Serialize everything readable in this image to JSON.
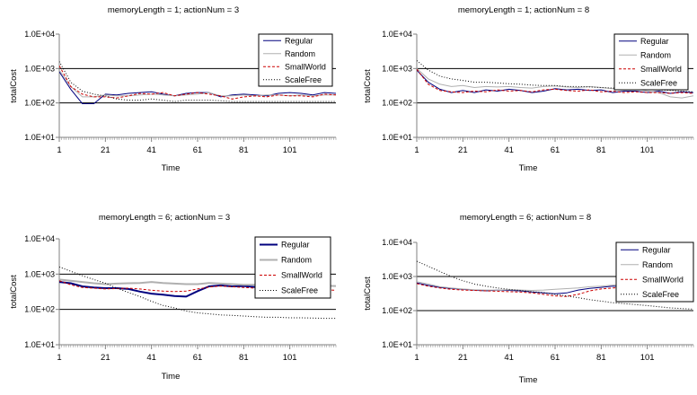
{
  "page": {
    "background": "#ffffff"
  },
  "chart_data": [
    {
      "type": "line",
      "title": "memoryLength = 1; actionNum = 3",
      "xlabel": "Time",
      "ylabel": "totalCost",
      "y_scale": "log",
      "ylim": [
        10,
        10000
      ],
      "yticks": [
        {
          "value": 10,
          "label": "1.0E+01"
        },
        {
          "value": 100,
          "label": "1.0E+02"
        },
        {
          "value": 1000,
          "label": "1.0E+03"
        },
        {
          "value": 10000,
          "label": "1.0E+04"
        }
      ],
      "xlim": [
        1,
        121
      ],
      "xticks": [
        1,
        21,
        41,
        61,
        81,
        101
      ],
      "gridlines_at": [
        100,
        1000
      ],
      "legend_position": "top-right",
      "series": [
        {
          "name": "Regular",
          "color": "#00007f",
          "dash": "",
          "width": 1,
          "x": [
            1,
            6,
            11,
            16,
            21,
            26,
            31,
            36,
            41,
            46,
            51,
            56,
            61,
            66,
            71,
            76,
            81,
            86,
            91,
            96,
            101,
            106,
            111,
            116,
            121
          ],
          "values": [
            800,
            250,
            95,
            95,
            180,
            170,
            190,
            200,
            210,
            180,
            160,
            190,
            200,
            200,
            150,
            170,
            180,
            170,
            160,
            190,
            200,
            190,
            170,
            200,
            190
          ]
        },
        {
          "name": "Random",
          "color": "#b0b0b0",
          "dash": "",
          "width": 1,
          "x": [
            1,
            6,
            11,
            16,
            21,
            26,
            31,
            36,
            41,
            46,
            51,
            56,
            61,
            66,
            71,
            76,
            81,
            86,
            91,
            96,
            101,
            106,
            111,
            116,
            121
          ],
          "values": [
            900,
            300,
            150,
            150,
            170,
            160,
            160,
            170,
            180,
            170,
            160,
            170,
            180,
            200,
            160,
            160,
            170,
            160,
            170,
            170,
            160,
            170,
            160,
            170,
            170
          ]
        },
        {
          "name": "SmallWorld",
          "color": "#cc0000",
          "dash": "3,2",
          "width": 1,
          "x": [
            1,
            6,
            11,
            16,
            21,
            26,
            31,
            36,
            41,
            46,
            51,
            56,
            61,
            66,
            71,
            76,
            81,
            86,
            91,
            96,
            101,
            106,
            111,
            116,
            121
          ],
          "values": [
            1200,
            300,
            180,
            150,
            150,
            140,
            160,
            190,
            180,
            200,
            160,
            180,
            200,
            180,
            160,
            130,
            150,
            160,
            150,
            170,
            160,
            160,
            150,
            180,
            170
          ]
        },
        {
          "name": "ScaleFree",
          "color": "#000000",
          "dash": "1,2",
          "width": 1,
          "x": [
            1,
            6,
            11,
            16,
            21,
            26,
            31,
            36,
            41,
            46,
            51,
            56,
            61,
            66,
            71,
            76,
            81,
            86,
            91,
            96,
            101,
            106,
            111,
            116,
            121
          ],
          "values": [
            1600,
            400,
            220,
            180,
            160,
            130,
            120,
            120,
            130,
            120,
            110,
            120,
            120,
            120,
            115,
            110,
            110,
            110,
            110,
            110,
            110,
            110,
            110,
            110,
            110
          ]
        }
      ]
    },
    {
      "type": "line",
      "title": "memoryLength = 1; actionNum = 8",
      "xlabel": "Time",
      "ylabel": "totalCost",
      "y_scale": "log",
      "ylim": [
        10,
        10000
      ],
      "yticks": [
        {
          "value": 10,
          "label": "1.0E+01"
        },
        {
          "value": 100,
          "label": "1.0E+02"
        },
        {
          "value": 1000,
          "label": "1.0E+03"
        },
        {
          "value": 10000,
          "label": "1.0E+04"
        }
      ],
      "xlim": [
        1,
        121
      ],
      "xticks": [
        1,
        21,
        41,
        61,
        81,
        101
      ],
      "gridlines_at": [
        100,
        1000
      ],
      "legend_position": "top-right",
      "series": [
        {
          "name": "Regular",
          "color": "#00007f",
          "dash": "",
          "width": 1,
          "x": [
            1,
            6,
            11,
            16,
            21,
            26,
            31,
            36,
            41,
            46,
            51,
            56,
            61,
            66,
            71,
            76,
            81,
            86,
            91,
            96,
            101,
            106,
            111,
            116,
            121
          ],
          "values": [
            900,
            400,
            250,
            200,
            230,
            200,
            240,
            220,
            250,
            230,
            200,
            220,
            260,
            240,
            250,
            230,
            240,
            200,
            220,
            220,
            200,
            220,
            190,
            210,
            200
          ]
        },
        {
          "name": "Random",
          "color": "#b0b0b0",
          "dash": "",
          "width": 1,
          "x": [
            1,
            6,
            11,
            16,
            21,
            26,
            31,
            36,
            41,
            46,
            51,
            56,
            61,
            66,
            71,
            76,
            81,
            86,
            91,
            96,
            101,
            106,
            111,
            116,
            121
          ],
          "values": [
            1000,
            500,
            350,
            300,
            320,
            280,
            300,
            290,
            300,
            280,
            270,
            300,
            310,
            290,
            280,
            300,
            280,
            260,
            240,
            260,
            220,
            200,
            150,
            140,
            160
          ]
        },
        {
          "name": "SmallWorld",
          "color": "#cc0000",
          "dash": "3,2",
          "width": 1,
          "x": [
            1,
            6,
            11,
            16,
            21,
            26,
            31,
            36,
            41,
            46,
            51,
            56,
            61,
            66,
            71,
            76,
            81,
            86,
            91,
            96,
            101,
            106,
            111,
            116,
            121
          ],
          "values": [
            950,
            350,
            230,
            210,
            200,
            220,
            210,
            240,
            220,
            230,
            210,
            240,
            250,
            230,
            220,
            240,
            210,
            220,
            200,
            210,
            200,
            200,
            190,
            200,
            190
          ]
        },
        {
          "name": "ScaleFree",
          "color": "#000000",
          "dash": "1,2",
          "width": 1,
          "x": [
            1,
            6,
            11,
            16,
            21,
            26,
            31,
            36,
            41,
            46,
            51,
            56,
            61,
            66,
            71,
            76,
            81,
            86,
            91,
            96,
            101,
            106,
            111,
            116,
            121
          ],
          "values": [
            1700,
            900,
            600,
            500,
            450,
            400,
            400,
            380,
            360,
            350,
            330,
            320,
            320,
            300,
            300,
            290,
            280,
            270,
            260,
            250,
            250,
            240,
            230,
            220,
            210
          ]
        }
      ]
    },
    {
      "type": "line",
      "title": "memoryLength = 6; actionNum = 3",
      "xlabel": "Time",
      "ylabel": "totalCost",
      "y_scale": "log",
      "ylim": [
        10,
        10000
      ],
      "yticks": [
        {
          "value": 10,
          "label": "1.0E+01"
        },
        {
          "value": 100,
          "label": "1.0E+02"
        },
        {
          "value": 1000,
          "label": "1.0E+03"
        },
        {
          "value": 10000,
          "label": "1.0E+04"
        }
      ],
      "xlim": [
        1,
        121
      ],
      "xticks": [
        1,
        21,
        41,
        61,
        81,
        101
      ],
      "gridlines_at": [
        100,
        1000
      ],
      "legend_position": "top-right",
      "series": [
        {
          "name": "Regular",
          "color": "#00007f",
          "dash": "",
          "width": 2,
          "x": [
            1,
            6,
            11,
            16,
            21,
            26,
            31,
            36,
            41,
            46,
            51,
            56,
            61,
            66,
            71,
            76,
            81,
            86,
            91
          ],
          "values": [
            600,
            550,
            450,
            420,
            400,
            400,
            380,
            320,
            280,
            260,
            240,
            230,
            330,
            450,
            480,
            450,
            460,
            430,
            420
          ]
        },
        {
          "name": "Random",
          "color": "#b0b0b0",
          "dash": "",
          "width": 2,
          "x": [
            1,
            6,
            11,
            16,
            21,
            26,
            31,
            36,
            41,
            46,
            51,
            56,
            61,
            66,
            71,
            76,
            81,
            86,
            91,
            96,
            101,
            106,
            111,
            116,
            121
          ],
          "values": [
            700,
            650,
            600,
            550,
            520,
            540,
            550,
            560,
            600,
            560,
            540,
            520,
            520,
            560,
            540,
            520,
            500,
            500,
            500,
            480,
            470,
            460,
            480,
            470,
            460
          ]
        },
        {
          "name": "SmallWorld",
          "color": "#cc0000",
          "dash": "3,2",
          "width": 1,
          "x": [
            1,
            6,
            11,
            16,
            21,
            26,
            31,
            36,
            41,
            46,
            51,
            56,
            61,
            66,
            71,
            76,
            81,
            86,
            91,
            96,
            101,
            106,
            111,
            116,
            121
          ],
          "values": [
            650,
            500,
            420,
            400,
            380,
            390,
            400,
            380,
            350,
            330,
            320,
            330,
            380,
            430,
            460,
            440,
            420,
            400,
            390,
            380,
            370,
            360,
            350,
            360,
            350
          ]
        },
        {
          "name": "ScaleFree",
          "color": "#000000",
          "dash": "1,2",
          "width": 1,
          "x": [
            1,
            6,
            11,
            16,
            21,
            26,
            31,
            36,
            41,
            46,
            51,
            56,
            61,
            66,
            71,
            76,
            81,
            86,
            91,
            96,
            101,
            106,
            111,
            116,
            121
          ],
          "values": [
            1600,
            1200,
            900,
            700,
            550,
            400,
            300,
            230,
            170,
            130,
            110,
            90,
            80,
            75,
            70,
            68,
            65,
            62,
            60,
            60,
            58,
            58,
            57,
            56,
            56
          ]
        }
      ]
    },
    {
      "type": "line",
      "title": "memoryLength = 6; actionNum = 8",
      "xlabel": "Time",
      "ylabel": "totalCost",
      "y_scale": "log",
      "ylim": [
        10,
        10000
      ],
      "yticks": [
        {
          "value": 10,
          "label": "1.0E+01"
        },
        {
          "value": 100,
          "label": "1.0E+02"
        },
        {
          "value": 1000,
          "label": "1.0E+03"
        },
        {
          "value": 10000,
          "label": "1.0E+04"
        }
      ],
      "xlim": [
        1,
        121
      ],
      "xticks": [
        1,
        21,
        41,
        61,
        81,
        101
      ],
      "gridlines_at": [
        100,
        1000
      ],
      "legend_position": "top-right",
      "series": [
        {
          "name": "Regular",
          "color": "#00007f",
          "dash": "",
          "width": 1,
          "x": [
            1,
            6,
            11,
            16,
            21,
            26,
            31,
            36,
            41,
            46,
            51,
            56,
            61,
            66,
            71,
            76,
            81,
            86,
            91
          ],
          "values": [
            650,
            550,
            480,
            450,
            420,
            400,
            380,
            400,
            390,
            380,
            350,
            330,
            310,
            330,
            400,
            450,
            480,
            520,
            500
          ]
        },
        {
          "name": "Random",
          "color": "#b0b0b0",
          "dash": "",
          "width": 1,
          "x": [
            1,
            6,
            11,
            16,
            21,
            26,
            31,
            36,
            41,
            46,
            51,
            56,
            61,
            66,
            71,
            76,
            81,
            86,
            91,
            96,
            101,
            106,
            111,
            116,
            121
          ],
          "values": [
            700,
            600,
            500,
            460,
            430,
            410,
            400,
            400,
            410,
            400,
            390,
            400,
            420,
            440,
            460,
            500,
            520,
            560,
            600,
            620,
            640,
            620,
            600,
            580,
            560
          ]
        },
        {
          "name": "SmallWorld",
          "color": "#cc0000",
          "dash": "3,2",
          "width": 1,
          "x": [
            1,
            6,
            11,
            16,
            21,
            26,
            31,
            36,
            41,
            46,
            51,
            56,
            61,
            66,
            71,
            76,
            81,
            86,
            91,
            96,
            101,
            106,
            111,
            116,
            121
          ],
          "values": [
            620,
            520,
            460,
            420,
            400,
            390,
            380,
            370,
            360,
            350,
            330,
            300,
            270,
            260,
            300,
            380,
            430,
            460,
            480,
            480,
            470,
            460,
            450,
            440,
            430
          ]
        },
        {
          "name": "ScaleFree",
          "color": "#000000",
          "dash": "1,2",
          "width": 1,
          "x": [
            1,
            6,
            11,
            16,
            21,
            26,
            31,
            36,
            41,
            46,
            51,
            56,
            61,
            66,
            71,
            76,
            81,
            86,
            91,
            96,
            101,
            106,
            111,
            116,
            121
          ],
          "values": [
            2800,
            2000,
            1400,
            1000,
            750,
            600,
            520,
            460,
            420,
            390,
            360,
            340,
            300,
            270,
            240,
            210,
            190,
            170,
            160,
            150,
            140,
            130,
            120,
            115,
            110
          ]
        }
      ]
    }
  ]
}
